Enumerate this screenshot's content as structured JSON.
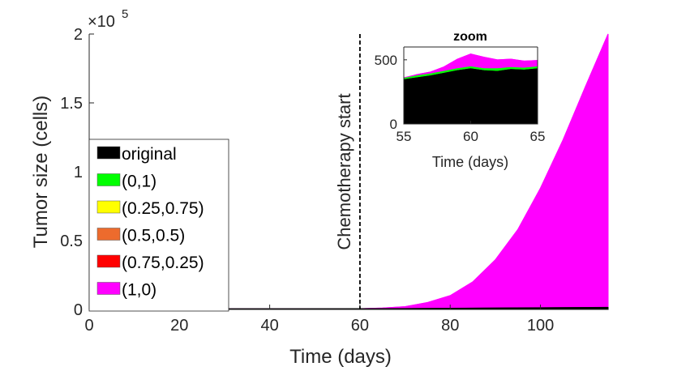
{
  "chart_data": [
    {
      "type": "area",
      "role": "main",
      "xlabel": "Time (days)",
      "ylabel": "Tumor size (cells)",
      "y_exponent_label": "×10",
      "y_exponent_power": "5",
      "xlim": [
        0,
        115
      ],
      "ylim": [
        0,
        2
      ],
      "x_ticks": [
        0,
        20,
        40,
        60,
        80,
        100
      ],
      "x_tick_labels": [
        "0",
        "20",
        "40",
        "60",
        "80",
        "100"
      ],
      "y_ticks": [
        0,
        0.5,
        1,
        1.5,
        2
      ],
      "y_tick_labels": [
        "0",
        "0.5",
        "1",
        "1.5",
        "2"
      ],
      "annotation": {
        "text": "Chemotherapy start",
        "x": 60
      },
      "legend": [
        {
          "label": "original",
          "color": "#000000"
        },
        {
          "label": "(0,1)",
          "color": "#00ff00"
        },
        {
          "label": "(0.25,0.75)",
          "color": "#ffff00"
        },
        {
          "label": "(0.5,0.5)",
          "color": "#ed6b2d"
        },
        {
          "label": "(0.75,0.25)",
          "color": "#ff0000"
        },
        {
          "label": "(1,0)",
          "color": "#ff00ff"
        }
      ],
      "series": [
        {
          "name": "(1,0)",
          "color": "#ff00ff",
          "x": [
            0,
            60,
            65,
            70,
            75,
            80,
            85,
            90,
            95,
            100,
            105,
            110,
            115
          ],
          "values": [
            0.004,
            0.005,
            0.01,
            0.02,
            0.05,
            0.1,
            0.2,
            0.36,
            0.58,
            0.88,
            1.23,
            1.62,
            2.0
          ]
        },
        {
          "name": "original",
          "color": "#000000",
          "x": [
            0,
            60,
            70,
            80,
            90,
            100,
            115
          ],
          "values": [
            0.004,
            0.005,
            0.006,
            0.008,
            0.01,
            0.012,
            0.015
          ]
        }
      ]
    },
    {
      "type": "area",
      "role": "inset",
      "title": "zoom",
      "xlabel": "Time (days)",
      "ylabel": "",
      "xlim": [
        55,
        65
      ],
      "ylim": [
        0,
        600
      ],
      "x_ticks": [
        55,
        60,
        65
      ],
      "x_tick_labels": [
        "55",
        "60",
        "65"
      ],
      "y_ticks": [
        0,
        500
      ],
      "y_tick_labels": [
        "0",
        "500"
      ],
      "series": [
        {
          "name": "(1,0)",
          "color": "#ff00ff",
          "x": [
            55,
            56,
            57,
            58,
            59,
            59.5,
            60,
            61,
            62,
            63,
            64,
            65
          ],
          "values": [
            360,
            385,
            405,
            445,
            505,
            525,
            545,
            520,
            500,
            505,
            490,
            495
          ]
        },
        {
          "name": "(0,1)",
          "color": "#00ff00",
          "x": [
            55,
            56,
            57,
            58,
            59,
            60,
            61,
            62,
            63,
            64,
            65
          ],
          "values": [
            355,
            375,
            390,
            410,
            430,
            445,
            430,
            430,
            440,
            435,
            445
          ]
        },
        {
          "name": "original",
          "color": "#000000",
          "x": [
            55,
            56,
            57,
            58,
            59,
            60,
            61,
            62,
            63,
            64,
            65
          ],
          "values": [
            345,
            360,
            375,
            395,
            415,
            430,
            415,
            410,
            425,
            420,
            430
          ]
        }
      ]
    }
  ]
}
